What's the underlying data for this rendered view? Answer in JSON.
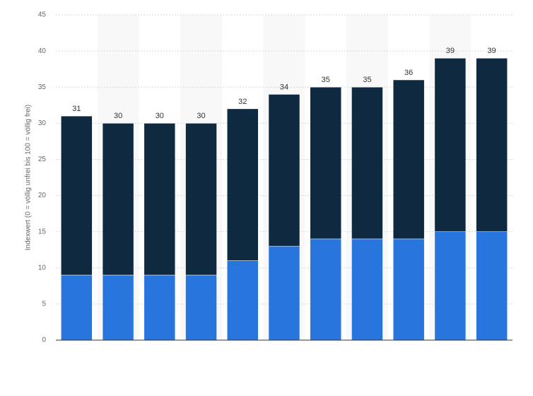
{
  "chart_data": {
    "type": "stacked_bar",
    "y_label": "Indexwert (0 = völlig unfrei bis 100 = völlig frei)",
    "categories": [
      null,
      null,
      null,
      null,
      null,
      null,
      null,
      null,
      null,
      null,
      null
    ],
    "series": [
      {
        "color": "#2876dd",
        "values": [
          9,
          9,
          9,
          9,
          11,
          13,
          14,
          14,
          14,
          15,
          15
        ]
      },
      {
        "color": "#0f2a40",
        "values": [
          22,
          21,
          21,
          21,
          21,
          21,
          21,
          21,
          22,
          24,
          24
        ]
      }
    ],
    "totals": [
      31,
      30,
      30,
      30,
      32,
      34,
      35,
      35,
      36,
      39,
      39
    ],
    "ylim": [
      0,
      45
    ],
    "yticks": [
      0,
      5,
      10,
      15,
      20,
      25,
      30,
      35,
      40,
      45
    ],
    "grid": true
  }
}
